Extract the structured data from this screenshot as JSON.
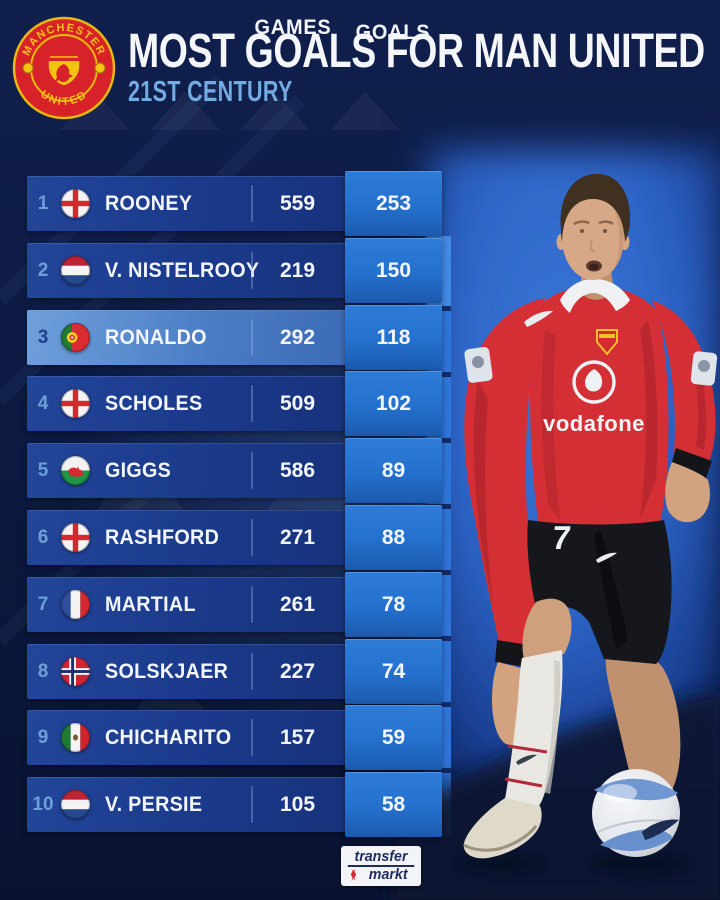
{
  "header": {
    "title": "MOST GOALS FOR MAN UNITED",
    "subtitle": "21ST CENTURY",
    "crest": {
      "icon": "manchester-united-crest-icon",
      "text_top": "MANCHESTER",
      "text_bottom": "UNITED"
    }
  },
  "table": {
    "games_header": "GAMES",
    "goals_header": "GOALS",
    "rows": [
      {
        "rank": "1",
        "flag": "england",
        "player": "ROONEY",
        "games": "559",
        "goals": "253",
        "highlight": false
      },
      {
        "rank": "2",
        "flag": "netherlands",
        "player": "V. NISTELROOY",
        "games": "219",
        "goals": "150",
        "highlight": false
      },
      {
        "rank": "3",
        "flag": "portugal",
        "player": "RONALDO",
        "games": "292",
        "goals": "118",
        "highlight": true
      },
      {
        "rank": "4",
        "flag": "england",
        "player": "SCHOLES",
        "games": "509",
        "goals": "102",
        "highlight": false
      },
      {
        "rank": "5",
        "flag": "wales",
        "player": "GIGGS",
        "games": "586",
        "goals": "89",
        "highlight": false
      },
      {
        "rank": "6",
        "flag": "england",
        "player": "RASHFORD",
        "games": "271",
        "goals": "88",
        "highlight": false
      },
      {
        "rank": "7",
        "flag": "france",
        "player": "MARTIAL",
        "games": "261",
        "goals": "78",
        "highlight": false
      },
      {
        "rank": "8",
        "flag": "norway",
        "player": "SOLSKJAER",
        "games": "227",
        "goals": "74",
        "highlight": false
      },
      {
        "rank": "9",
        "flag": "mexico",
        "player": "CHICHARITO",
        "games": "157",
        "goals": "59",
        "highlight": false
      },
      {
        "rank": "10",
        "flag": "netherlands",
        "player": "V. PERSIE",
        "games": "105",
        "goals": "58",
        "highlight": false
      }
    ]
  },
  "player_photo": {
    "icon": "ronaldo-player-photo",
    "shirt_number": "7",
    "sponsor_text": "vodafone"
  },
  "footer": {
    "brand_line1": "transfer",
    "brand_line2": "markt",
    "brand_icon": "transfermarkt-devil-icon"
  },
  "colors": {
    "background": "#0c1a42",
    "accent_light_blue": "#74abe2",
    "row_band_blue": "#1b3a8c",
    "highlight_row_blue": "#4a7cc4",
    "goals_box_blue": "#2470cd",
    "shirt_red": "#d32f35",
    "crest_red": "#d8222a",
    "crest_gold": "#f3c312"
  }
}
